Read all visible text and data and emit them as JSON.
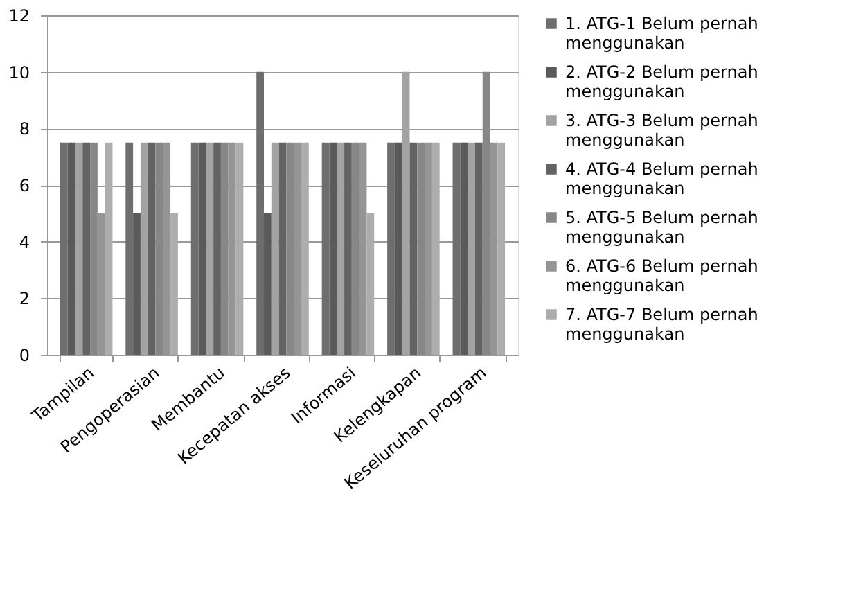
{
  "chart_data": {
    "type": "bar",
    "categories": [
      "Tampilan",
      "Pengoperasian",
      "Membantu",
      "Kecepatan akses",
      "Informasi",
      "Kelengkapan",
      "Keseluruhan program"
    ],
    "series": [
      {
        "name": "1. ATG-1 Belum pernah menggunakan",
        "color": "#6e6e6e",
        "values": [
          7.5,
          7.5,
          7.5,
          10,
          7.5,
          7.5,
          7.5
        ]
      },
      {
        "name": "2. ATG-2 Belum pernah menggunakan",
        "color": "#5a5a5a",
        "values": [
          7.5,
          5,
          7.5,
          5,
          7.5,
          7.5,
          7.5
        ]
      },
      {
        "name": "3. ATG-3 Belum pernah menggunakan",
        "color": "#a3a3a3",
        "values": [
          7.5,
          7.5,
          7.5,
          7.5,
          7.5,
          10,
          7.5
        ]
      },
      {
        "name": "4. ATG-4 Belum pernah menggunakan",
        "color": "#636363",
        "values": [
          7.5,
          7.5,
          7.5,
          7.5,
          7.5,
          7.5,
          7.5
        ]
      },
      {
        "name": "5. ATG-5 Belum pernah menggunakan",
        "color": "#878787",
        "values": [
          7.5,
          7.5,
          7.5,
          7.5,
          7.5,
          7.5,
          10
        ]
      },
      {
        "name": "6. ATG-6 Belum pernah menggunakan",
        "color": "#959595",
        "values": [
          5,
          7.5,
          7.5,
          7.5,
          7.5,
          7.5,
          7.5
        ]
      },
      {
        "name": "7. ATG-7 Belum pernah menggunakan",
        "color": "#adadad",
        "values": [
          7.5,
          5,
          7.5,
          7.5,
          5,
          7.5,
          7.5
        ]
      }
    ],
    "ylim": [
      0,
      12
    ],
    "yticks": [
      0,
      2,
      4,
      6,
      8,
      10,
      12
    ],
    "grid": "y",
    "legend": "right"
  }
}
